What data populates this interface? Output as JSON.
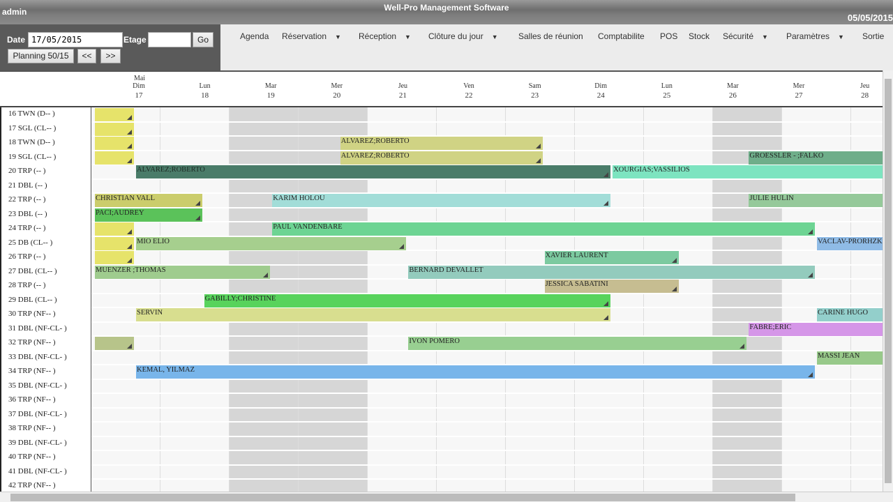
{
  "header": {
    "user": "admin",
    "title": "Well-Pro Management Software",
    "date": "05/05/2015"
  },
  "controls": {
    "date_label": "Date",
    "date_value": "17/05/2015",
    "floor_label": "Etage",
    "floor_value": "",
    "go": "Go",
    "planning": "Planning 50/15",
    "prev": "<<",
    "next": ">>"
  },
  "menu": [
    {
      "label": "Agenda",
      "dropdown": false
    },
    {
      "label": "Réservation",
      "dropdown": true
    },
    {
      "label": "Réception",
      "dropdown": true
    },
    {
      "label": "Clôture du jour",
      "dropdown": true
    },
    {
      "label": "Salles de réunion",
      "dropdown": false
    },
    {
      "label": "Comptabilite",
      "dropdown": false
    },
    {
      "label": "POS",
      "dropdown": false
    },
    {
      "label": "Stock",
      "dropdown": false
    },
    {
      "label": "Sécurité",
      "dropdown": true
    },
    {
      "label": "Paramètres",
      "dropdown": true
    },
    {
      "label": "Sortie",
      "dropdown": false
    }
  ],
  "month": "Mai",
  "days": [
    {
      "name": "Dim",
      "num": "17"
    },
    {
      "name": "Lun",
      "num": "18"
    },
    {
      "name": "Mar",
      "num": "19"
    },
    {
      "name": "Mer",
      "num": "20"
    },
    {
      "name": "Jeu",
      "num": "21"
    },
    {
      "name": "Ven",
      "num": "22"
    },
    {
      "name": "Sam",
      "num": "23"
    },
    {
      "name": "Dim",
      "num": "24"
    },
    {
      "name": "Lun",
      "num": "25"
    },
    {
      "name": "Mar",
      "num": "26"
    },
    {
      "name": "Mer",
      "num": "27"
    },
    {
      "name": "Jeu",
      "num": "28"
    }
  ],
  "highlighted_days": [
    "19",
    "20",
    "26"
  ],
  "rooms": [
    "16 TWN (D-- )",
    "17 SGL (CL-- )",
    "18 TWN (D-- )",
    "19 SGL (CL-- )",
    "20 TRP (-- )",
    "21 DBL (-- )",
    "22 TRP (-- )",
    "23 DBL (-- )",
    "24 TRP (-- )",
    "25 DB (CL-- )",
    "26 TRP (-- )",
    "27 DBL (CL-- )",
    "28 TRP (-- )",
    "29 DBL (CL-- )",
    "30 TRP (NF-- )",
    "31 DBL (NF-CL- )",
    "32 TRP (NF-- )",
    "33 DBL (NF-CL- )",
    "34 TRP (NF-- )",
    "35 DBL (NF-CL- )",
    "36 TRP (NF-- )",
    "37 DBL (NF-CL- )",
    "38 TRP (NF-- )",
    "39 DBL (NF-CL- )",
    "40 TRP (NF-- )",
    "41 DBL (NF-CL- )",
    "42 TRP (NF-- )"
  ],
  "bookings": [
    {
      "room": 0,
      "guest": "",
      "start": 16,
      "end": 17,
      "color": "#e6e36a"
    },
    {
      "room": 1,
      "guest": "",
      "start": 16,
      "end": 17,
      "color": "#e6e36a"
    },
    {
      "room": 2,
      "guest": "",
      "start": 16,
      "end": 17,
      "color": "#e6e36a"
    },
    {
      "room": 2,
      "guest": "ALVAREZ;ROBERTO",
      "start": 20,
      "end": 23,
      "color": "#d0d384"
    },
    {
      "room": 3,
      "guest": "",
      "start": 16,
      "end": 17,
      "color": "#e6e36a"
    },
    {
      "room": 3,
      "guest": "ALVAREZ;ROBERTO",
      "start": 20,
      "end": 23,
      "color": "#d0d384"
    },
    {
      "room": 3,
      "guest": "GROESSLER - ;FALKO",
      "start": 26,
      "end": 29,
      "color": "#6fae8a"
    },
    {
      "room": 4,
      "guest": "ALVAREZ;ROBERTO",
      "start": 17,
      "end": 24,
      "color": "#4a7c69"
    },
    {
      "room": 4,
      "guest": "XOURGIAS;VASSILIOS",
      "start": 24,
      "end": 29,
      "color": "#7de4c0"
    },
    {
      "room": 6,
      "guest": "CHRISTIAN VALL",
      "start": 16,
      "end": 18,
      "color": "#cbcd6c"
    },
    {
      "room": 6,
      "guest": "KARIM HOLOU",
      "start": 19,
      "end": 24,
      "color": "#a2ddd8"
    },
    {
      "room": 6,
      "guest": "JULIE HULIN",
      "start": 26,
      "end": 29,
      "color": "#95c99a"
    },
    {
      "room": 7,
      "guest": "PACI;AUDREY",
      "start": 16,
      "end": 18,
      "color": "#5bc25a"
    },
    {
      "room": 8,
      "guest": "",
      "start": 16,
      "end": 17,
      "color": "#e6e36a"
    },
    {
      "room": 8,
      "guest": "PAUL VANDENBARE",
      "start": 19,
      "end": 27,
      "color": "#6dd493"
    },
    {
      "room": 9,
      "guest": "",
      "start": 16,
      "end": 17,
      "color": "#e6e36a"
    },
    {
      "room": 9,
      "guest": "MIO ELIO",
      "start": 17,
      "end": 21,
      "color": "#a6cf8e"
    },
    {
      "room": 9,
      "guest": "VACLAV-PRORHZK.",
      "start": 27,
      "end": 29,
      "color": "#8fbbe6"
    },
    {
      "room": 10,
      "guest": "",
      "start": 16,
      "end": 17,
      "color": "#e6e36a"
    },
    {
      "room": 10,
      "guest": "XAVIER LAURENT",
      "start": 23,
      "end": 25,
      "color": "#7ccaa0"
    },
    {
      "room": 11,
      "guest": "MUENZER ;THOMAS",
      "start": 16,
      "end": 19,
      "color": "#9fcc8e"
    },
    {
      "room": 11,
      "guest": "BERNARD DEVALLET",
      "start": 21,
      "end": 27,
      "color": "#93cbbd"
    },
    {
      "room": 12,
      "guest": "JESSICA SABATINI",
      "start": 23,
      "end": 25,
      "color": "#c6bd91"
    },
    {
      "room": 13,
      "guest": "GABILLY;CHRISTINE",
      "start": 18,
      "end": 24,
      "color": "#58d35c"
    },
    {
      "room": 14,
      "guest": "SERVIN",
      "start": 17,
      "end": 24,
      "color": "#d8de8f"
    },
    {
      "room": 14,
      "guest": "CARINE HUGO",
      "start": 27,
      "end": 29,
      "color": "#93cfcb"
    },
    {
      "room": 15,
      "guest": "FABRE;ERIC",
      "start": 26,
      "end": 29,
      "color": "#d596e8"
    },
    {
      "room": 16,
      "guest": "",
      "start": 16,
      "end": 17,
      "color": "#b7c48a"
    },
    {
      "room": 16,
      "guest": "IVON POMERO",
      "start": 21,
      "end": 26,
      "color": "#98cf91"
    },
    {
      "room": 17,
      "guest": "MASSI JEAN",
      "start": 27,
      "end": 29,
      "color": "#98c98a"
    },
    {
      "room": 18,
      "guest": "KEMAL, YILMAZ",
      "start": 17,
      "end": 27,
      "color": "#78b5ea"
    }
  ]
}
